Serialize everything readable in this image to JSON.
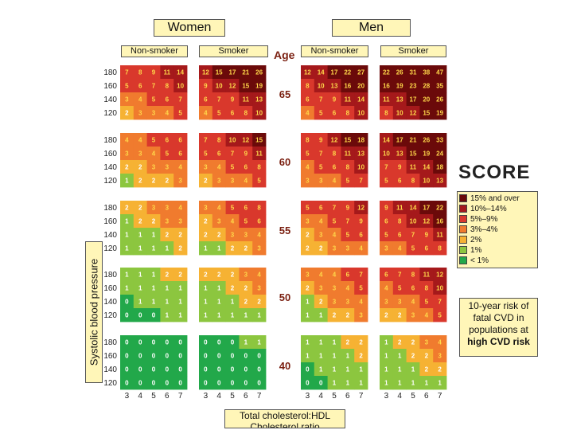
{
  "headers": {
    "women": "Women",
    "men": "Men",
    "non_smoker": "Non-smoker",
    "smoker": "Smoker",
    "age": "Age"
  },
  "ages": [
    "65",
    "60",
    "55",
    "50",
    "40"
  ],
  "y_axis": {
    "label": "Systolic blood pressure",
    "ticks": [
      "180",
      "160",
      "140",
      "120"
    ]
  },
  "x_axis": {
    "label_line1": "Total cholesterol:HDL",
    "label_line2": "Cholesterol ratio",
    "ticks": [
      "3",
      "4",
      "5",
      "6",
      "7"
    ]
  },
  "score": "SCORE",
  "legend": [
    {
      "label": "15% and over",
      "color": "#6b0a0a"
    },
    {
      "label": "10%–14%",
      "color": "#a5191b"
    },
    {
      "label": "5%–9%",
      "color": "#d9382c"
    },
    {
      "label": "3%–4%",
      "color": "#f07b2e"
    },
    {
      "label": "2%",
      "color": "#f6b233"
    },
    {
      "label": "1%",
      "color": "#8cc63f"
    },
    {
      "label": "< 1%",
      "color": "#22a84a"
    }
  ],
  "risk_note": {
    "line1": "10-year risk of",
    "line2": "fatal CVD in",
    "line3": "populations at",
    "line4": "high CVD risk"
  },
  "chart_data": {
    "type": "heatmap",
    "title": "SCORE 10-year risk of fatal CVD in populations at high CVD risk",
    "xlabel": "Total cholesterol:HDL Cholesterol ratio",
    "ylabel": "Systolic blood pressure",
    "x": [
      3,
      4,
      5,
      6,
      7
    ],
    "y": [
      180,
      160,
      140,
      120
    ],
    "panels": {
      "women_nonsmoker": {
        "65": [
          [
            7,
            8,
            9,
            11,
            14
          ],
          [
            5,
            6,
            7,
            8,
            10
          ],
          [
            3,
            4,
            5,
            6,
            7
          ],
          [
            2,
            3,
            3,
            4,
            5
          ]
        ],
        "60": [
          [
            4,
            4,
            5,
            6,
            6
          ],
          [
            3,
            3,
            4,
            5,
            6
          ],
          [
            2,
            2,
            3,
            3,
            4
          ],
          [
            1,
            2,
            2,
            2,
            3
          ]
        ],
        "55": [
          [
            2,
            2,
            3,
            3,
            4
          ],
          [
            1,
            2,
            2,
            3,
            3
          ],
          [
            1,
            1,
            1,
            2,
            2
          ],
          [
            1,
            1,
            1,
            1,
            2
          ]
        ],
        "50": [
          [
            1,
            1,
            1,
            2,
            2
          ],
          [
            1,
            1,
            1,
            1,
            1
          ],
          [
            0,
            1,
            1,
            1,
            1
          ],
          [
            0,
            0,
            0,
            1,
            1
          ]
        ],
        "40": [
          [
            0,
            0,
            0,
            0,
            0
          ],
          [
            0,
            0,
            0,
            0,
            0
          ],
          [
            0,
            0,
            0,
            0,
            0
          ],
          [
            0,
            0,
            0,
            0,
            0
          ]
        ]
      },
      "women_smoker": {
        "65": [
          [
            12,
            15,
            17,
            21,
            26
          ],
          [
            9,
            10,
            12,
            15,
            19
          ],
          [
            6,
            7,
            9,
            11,
            13
          ],
          [
            4,
            5,
            6,
            8,
            10
          ]
        ],
        "60": [
          [
            7,
            8,
            10,
            12,
            15
          ],
          [
            5,
            6,
            7,
            9,
            11
          ],
          [
            3,
            4,
            5,
            6,
            8
          ],
          [
            2,
            3,
            3,
            4,
            5
          ]
        ],
        "55": [
          [
            3,
            4,
            5,
            6,
            8
          ],
          [
            2,
            3,
            4,
            5,
            6
          ],
          [
            2,
            2,
            3,
            3,
            4
          ],
          [
            1,
            1,
            2,
            2,
            3
          ]
        ],
        "50": [
          [
            2,
            2,
            2,
            3,
            4
          ],
          [
            1,
            1,
            2,
            2,
            3
          ],
          [
            1,
            1,
            1,
            2,
            2
          ],
          [
            1,
            1,
            1,
            1,
            1
          ]
        ],
        "40": [
          [
            0,
            0,
            0,
            1,
            1
          ],
          [
            0,
            0,
            0,
            0,
            0
          ],
          [
            0,
            0,
            0,
            0,
            0
          ],
          [
            0,
            0,
            0,
            0,
            0
          ]
        ]
      },
      "men_nonsmoker": {
        "65": [
          [
            12,
            14,
            17,
            22,
            27
          ],
          [
            8,
            10,
            13,
            16,
            20
          ],
          [
            6,
            7,
            9,
            11,
            14
          ],
          [
            4,
            5,
            6,
            8,
            10
          ]
        ],
        "60": [
          [
            8,
            9,
            12,
            15,
            18
          ],
          [
            5,
            7,
            8,
            11,
            13
          ],
          [
            4,
            5,
            6,
            8,
            10
          ],
          [
            3,
            3,
            4,
            5,
            7
          ]
        ],
        "55": [
          [
            5,
            6,
            7,
            9,
            12
          ],
          [
            3,
            4,
            5,
            7,
            9
          ],
          [
            2,
            3,
            4,
            5,
            6
          ],
          [
            2,
            2,
            3,
            3,
            4
          ]
        ],
        "50": [
          [
            3,
            4,
            4,
            6,
            7
          ],
          [
            2,
            3,
            3,
            4,
            5
          ],
          [
            1,
            2,
            3,
            3,
            4
          ],
          [
            1,
            1,
            2,
            2,
            3
          ]
        ],
        "40": [
          [
            1,
            1,
            1,
            2,
            2
          ],
          [
            1,
            1,
            1,
            1,
            2
          ],
          [
            0,
            1,
            1,
            1,
            1
          ],
          [
            0,
            0,
            1,
            1,
            1
          ]
        ]
      },
      "men_smoker": {
        "65": [
          [
            22,
            26,
            31,
            38,
            47
          ],
          [
            16,
            19,
            23,
            28,
            35
          ],
          [
            11,
            13,
            17,
            20,
            26
          ],
          [
            8,
            10,
            12,
            15,
            19
          ]
        ],
        "60": [
          [
            14,
            17,
            21,
            26,
            33
          ],
          [
            10,
            13,
            15,
            19,
            24
          ],
          [
            7,
            9,
            11,
            14,
            18
          ],
          [
            5,
            6,
            8,
            10,
            13
          ]
        ],
        "55": [
          [
            9,
            11,
            14,
            17,
            22
          ],
          [
            6,
            8,
            10,
            12,
            16
          ],
          [
            5,
            6,
            7,
            9,
            11
          ],
          [
            3,
            4,
            5,
            6,
            8
          ]
        ],
        "50": [
          [
            6,
            7,
            8,
            11,
            12
          ],
          [
            4,
            5,
            6,
            8,
            10
          ],
          [
            3,
            3,
            4,
            5,
            7
          ],
          [
            2,
            2,
            3,
            4,
            5
          ]
        ],
        "40": [
          [
            1,
            2,
            2,
            3,
            4
          ],
          [
            1,
            1,
            2,
            2,
            3
          ],
          [
            1,
            1,
            1,
            2,
            2
          ],
          [
            1,
            1,
            1,
            1,
            1
          ]
        ]
      }
    }
  }
}
